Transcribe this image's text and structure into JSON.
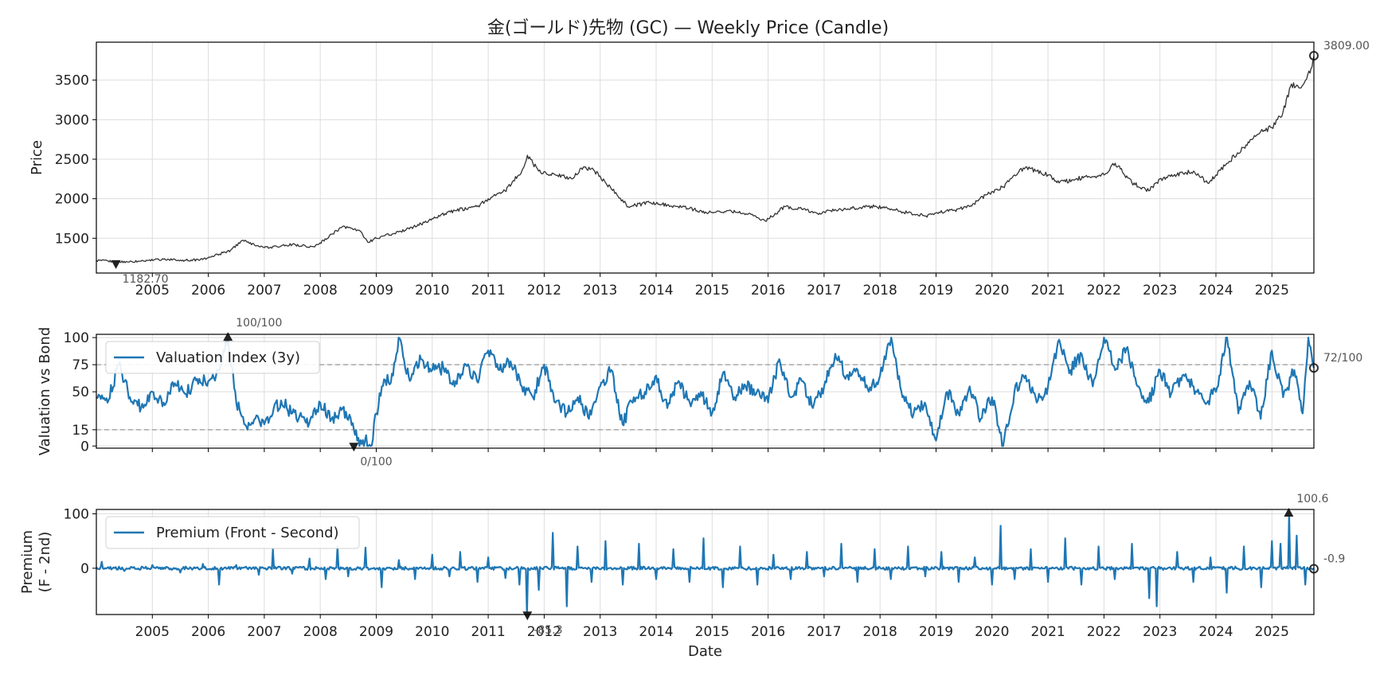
{
  "chart_data": [
    {
      "type": "line",
      "title": "金(ゴールド)先物 (GC) — Weekly Price (Candle)",
      "ylabel": "Price",
      "xlabel": "",
      "x_range": [
        2004.0,
        2025.75
      ],
      "ylim": [
        1060,
        3980
      ],
      "yticks": [
        1500,
        2000,
        2500,
        3000,
        3500
      ],
      "xticks": [
        2005,
        2006,
        2007,
        2008,
        2009,
        2010,
        2011,
        2012,
        2013,
        2014,
        2015,
        2016,
        2017,
        2018,
        2019,
        2020,
        2021,
        2022,
        2023,
        2024,
        2025
      ],
      "xtick_labels": [
        "2005",
        "2006",
        "2007",
        "2008",
        "2009",
        "2010",
        "2011",
        "2012",
        "2013",
        "2014",
        "2015",
        "2016",
        "2017",
        "2018",
        "2019",
        "2020",
        "2021",
        "2022",
        "2023",
        "2024",
        "2025"
      ],
      "grid": true,
      "series": [
        {
          "name": "Weekly Price",
          "color": "#333333",
          "x": [
            2004.0,
            2004.4,
            2004.8,
            2005.2,
            2005.6,
            2005.9,
            2006.2,
            2006.4,
            2006.6,
            2007.0,
            2007.5,
            2007.9,
            2008.2,
            2008.4,
            2008.7,
            2008.85,
            2009.0,
            2009.4,
            2009.8,
            2010.0,
            2010.4,
            2010.8,
            2011.0,
            2011.3,
            2011.6,
            2011.7,
            2011.9,
            2012.2,
            2012.5,
            2012.7,
            2012.9,
            2013.1,
            2013.3,
            2013.5,
            2013.9,
            2014.2,
            2014.6,
            2014.9,
            2015.3,
            2015.7,
            2015.95,
            2016.3,
            2016.6,
            2016.9,
            2017.1,
            2017.5,
            2017.9,
            2018.2,
            2018.5,
            2018.8,
            2019.0,
            2019.3,
            2019.6,
            2019.9,
            2020.2,
            2020.4,
            2020.6,
            2020.8,
            2021.0,
            2021.2,
            2021.5,
            2021.8,
            2022.0,
            2022.2,
            2022.5,
            2022.8,
            2023.0,
            2023.3,
            2023.6,
            2023.85,
            2024.0,
            2024.2,
            2024.5,
            2024.8,
            2025.0,
            2025.2,
            2025.35,
            2025.5,
            2025.6,
            2025.7,
            2025.75
          ],
          "values": [
            1220,
            1200,
            1210,
            1235,
            1220,
            1230,
            1300,
            1350,
            1470,
            1380,
            1420,
            1390,
            1550,
            1650,
            1600,
            1450,
            1500,
            1580,
            1680,
            1750,
            1850,
            1900,
            2000,
            2100,
            2350,
            2550,
            2350,
            2300,
            2250,
            2400,
            2350,
            2200,
            2050,
            1900,
            1950,
            1920,
            1880,
            1820,
            1850,
            1800,
            1720,
            1900,
            1870,
            1800,
            1850,
            1880,
            1900,
            1870,
            1820,
            1780,
            1820,
            1850,
            1900,
            2050,
            2150,
            2300,
            2400,
            2350,
            2300,
            2200,
            2250,
            2280,
            2300,
            2450,
            2200,
            2100,
            2250,
            2300,
            2350,
            2200,
            2300,
            2450,
            2650,
            2850,
            2900,
            3100,
            3450,
            3400,
            3500,
            3650,
            3809
          ]
        }
      ],
      "annotations": [
        {
          "label": "3809.00",
          "x": 2025.75,
          "y": 3809,
          "marker": "circle"
        },
        {
          "label": "1182.70",
          "x": 2004.35,
          "y": 1182.7,
          "marker": "triangle-down"
        }
      ]
    },
    {
      "type": "line",
      "ylabel": "Valuation vs Bond",
      "x_range": [
        2004.0,
        2025.75
      ],
      "ylim": [
        -2,
        103
      ],
      "yticks": [
        0,
        15,
        50,
        75,
        100
      ],
      "reference_lines": [
        15,
        75
      ],
      "grid": true,
      "legend": {
        "placement": "top-left",
        "entries": [
          "Valuation Index (3y)"
        ]
      },
      "series": [
        {
          "name": "Valuation Index (3y)",
          "color": "#1f77b4",
          "x": [
            2004.0,
            2004.2,
            2004.4,
            2004.6,
            2004.8,
            2005.0,
            2005.2,
            2005.4,
            2005.6,
            2005.8,
            2006.0,
            2006.2,
            2006.35,
            2006.5,
            2006.7,
            2006.9,
            2007.0,
            2007.3,
            2007.5,
            2007.8,
            2008.0,
            2008.2,
            2008.4,
            2008.6,
            2008.7,
            2008.8,
            2008.9,
            2009.0,
            2009.1,
            2009.3,
            2009.4,
            2009.6,
            2009.8,
            2010.0,
            2010.2,
            2010.4,
            2010.6,
            2010.8,
            2011.0,
            2011.2,
            2011.4,
            2011.6,
            2011.8,
            2012.0,
            2012.2,
            2012.4,
            2012.6,
            2012.8,
            2013.0,
            2013.2,
            2013.4,
            2013.6,
            2013.8,
            2014.0,
            2014.2,
            2014.4,
            2014.6,
            2014.8,
            2015.0,
            2015.2,
            2015.4,
            2015.6,
            2015.8,
            2016.0,
            2016.2,
            2016.4,
            2016.6,
            2016.8,
            2017.0,
            2017.2,
            2017.4,
            2017.6,
            2017.8,
            2018.0,
            2018.2,
            2018.4,
            2018.6,
            2018.8,
            2019.0,
            2019.2,
            2019.4,
            2019.6,
            2019.8,
            2020.0,
            2020.2,
            2020.4,
            2020.6,
            2020.8,
            2021.0,
            2021.2,
            2021.4,
            2021.6,
            2021.8,
            2022.0,
            2022.2,
            2022.4,
            2022.6,
            2022.8,
            2023.0,
            2023.2,
            2023.4,
            2023.6,
            2023.8,
            2024.0,
            2024.2,
            2024.4,
            2024.6,
            2024.8,
            2025.0,
            2025.2,
            2025.4,
            2025.55,
            2025.65,
            2025.75
          ],
          "values": [
            45,
            40,
            75,
            45,
            35,
            50,
            40,
            58,
            48,
            62,
            60,
            70,
            100,
            40,
            15,
            25,
            20,
            42,
            30,
            20,
            40,
            25,
            35,
            15,
            0,
            5,
            0,
            30,
            55,
            65,
            100,
            60,
            80,
            70,
            72,
            55,
            75,
            60,
            88,
            70,
            78,
            55,
            45,
            75,
            40,
            30,
            45,
            25,
            55,
            70,
            20,
            45,
            50,
            65,
            35,
            60,
            40,
            50,
            30,
            68,
            45,
            55,
            50,
            40,
            80,
            45,
            60,
            35,
            55,
            85,
            65,
            70,
            50,
            65,
            100,
            45,
            30,
            40,
            5,
            50,
            30,
            55,
            25,
            45,
            0,
            50,
            65,
            40,
            55,
            98,
            70,
            85,
            55,
            100,
            70,
            90,
            55,
            40,
            70,
            48,
            65,
            55,
            40,
            50,
            100,
            30,
            60,
            25,
            88,
            45,
            70,
            30,
            100,
            72
          ]
        }
      ],
      "annotations": [
        {
          "label": "100/100",
          "x": 2006.35,
          "y": 100,
          "marker": "triangle-up"
        },
        {
          "label": "0/100",
          "x": 2008.6,
          "y": 0,
          "marker": "triangle-down"
        },
        {
          "label": "72/100",
          "x": 2025.75,
          "y": 72,
          "marker": "circle"
        }
      ]
    },
    {
      "type": "line",
      "ylabel": "Premium",
      "ylabel2": "(F - 2nd)",
      "xlabel": "Date",
      "x_range": [
        2004.0,
        2025.75
      ],
      "ylim": [
        -85,
        108
      ],
      "yticks": [
        0,
        100
      ],
      "xticks": [
        2005,
        2006,
        2007,
        2008,
        2009,
        2010,
        2011,
        2012,
        2013,
        2014,
        2015,
        2016,
        2017,
        2018,
        2019,
        2020,
        2021,
        2022,
        2023,
        2024,
        2025
      ],
      "xtick_labels": [
        "2005",
        "2006",
        "2007",
        "2008",
        "2009",
        "2010",
        "2011",
        "2012",
        "2013",
        "2014",
        "2015",
        "2016",
        "2017",
        "2018",
        "2019",
        "2020",
        "2021",
        "2022",
        "2023",
        "2024",
        "2025"
      ],
      "grid": true,
      "legend": {
        "placement": "top-left",
        "entries": [
          "Premium (Front - Second)"
        ]
      },
      "series": [
        {
          "name": "Premium (Front - Second)",
          "color": "#1f77b4",
          "baseline": 0,
          "spikes_x": [
            2004.1,
            2004.5,
            2005.0,
            2005.5,
            2005.9,
            2006.2,
            2006.5,
            2006.9,
            2007.15,
            2007.5,
            2007.8,
            2008.1,
            2008.3,
            2008.5,
            2008.8,
            2009.1,
            2009.4,
            2009.7,
            2010.0,
            2010.3,
            2010.5,
            2010.8,
            2011.0,
            2011.3,
            2011.55,
            2011.7,
            2011.9,
            2012.15,
            2012.4,
            2012.6,
            2012.85,
            2013.1,
            2013.4,
            2013.7,
            2014.0,
            2014.3,
            2014.6,
            2014.85,
            2015.2,
            2015.5,
            2015.8,
            2016.1,
            2016.4,
            2016.7,
            2017.0,
            2017.3,
            2017.6,
            2017.9,
            2018.2,
            2018.5,
            2018.8,
            2019.1,
            2019.4,
            2019.7,
            2020.0,
            2020.15,
            2020.4,
            2020.7,
            2021.0,
            2021.3,
            2021.6,
            2021.9,
            2022.2,
            2022.5,
            2022.8,
            2022.95,
            2023.3,
            2023.6,
            2023.9,
            2024.2,
            2024.5,
            2024.8,
            2025.0,
            2025.15,
            2025.3,
            2025.45,
            2025.6,
            2025.68
          ],
          "spikes_y": [
            12,
            -5,
            6,
            -8,
            8,
            -30,
            6,
            -12,
            35,
            -10,
            18,
            -20,
            40,
            -15,
            38,
            -35,
            15,
            -20,
            25,
            -15,
            30,
            -25,
            20,
            -18,
            -30,
            -85.3,
            -40,
            65,
            -70,
            40,
            -25,
            50,
            -30,
            45,
            -20,
            35,
            -25,
            55,
            -35,
            40,
            -30,
            25,
            -20,
            30,
            -15,
            45,
            -25,
            35,
            -20,
            40,
            -15,
            30,
            -25,
            20,
            -30,
            78,
            -20,
            35,
            -25,
            55,
            -30,
            40,
            -20,
            45,
            -55,
            -70,
            30,
            -25,
            20,
            -45,
            40,
            -35,
            50,
            45,
            100.6,
            60,
            -30,
            -0.9
          ]
        }
      ],
      "annotations": [
        {
          "label": "100.6",
          "x": 2025.3,
          "y": 100.6,
          "marker": "triangle-up"
        },
        {
          "label": "-85.3",
          "x": 2011.7,
          "y": -85.3,
          "marker": "triangle-down"
        },
        {
          "label": "-0.9",
          "x": 2025.75,
          "y": -0.9,
          "marker": "circle"
        }
      ]
    }
  ]
}
